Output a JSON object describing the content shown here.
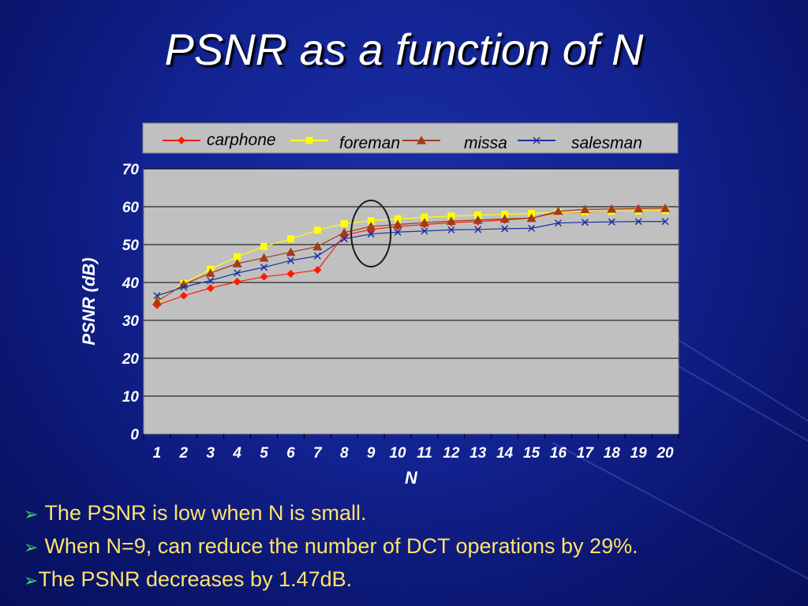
{
  "slide": {
    "title": "PSNR as a function of N",
    "bullets": [
      "The PSNR is low when N is small.",
      "When N=9, can reduce the number of DCT operations by 29%.",
      "The PSNR decreases by 1.47dB."
    ],
    "bullet_symbol": "➢"
  },
  "colors": {
    "carphone": "#ff1a00",
    "foreman": "#ffff00",
    "missa": "#a33a1a",
    "salesman": "#1f2f9f",
    "plot_background": "#c0c0c0",
    "axis_text": "#ffffff"
  },
  "chart_data": {
    "type": "line",
    "x": [
      1,
      2,
      3,
      4,
      5,
      6,
      7,
      8,
      9,
      10,
      11,
      12,
      13,
      14,
      15,
      16,
      17,
      18,
      19,
      20
    ],
    "xlabel": "N",
    "ylabel": "PSNR (dB)",
    "ylim": [
      0,
      70
    ],
    "yticks": [
      0,
      10,
      20,
      30,
      40,
      50,
      60,
      70
    ],
    "grid": true,
    "legend_position": "top",
    "annotation": "ellipse around N=9",
    "series": [
      {
        "name": "carphone",
        "marker": "diamond",
        "values": [
          34,
          36.5,
          38.5,
          40.2,
          41.5,
          42.3,
          43.3,
          52.5,
          54,
          54.8,
          55.3,
          55.8,
          56.1,
          56.5,
          57,
          58.5,
          58.6,
          58.8,
          58.9,
          59
        ]
      },
      {
        "name": "foreman",
        "marker": "square",
        "values": [
          35,
          39.8,
          43.5,
          46.8,
          49.5,
          51.5,
          53.8,
          55.5,
          56.3,
          56.8,
          57.2,
          57.5,
          57.8,
          58,
          58.2,
          58.5,
          58.7,
          58.8,
          58.9,
          59
        ]
      },
      {
        "name": "missa",
        "marker": "triangle",
        "values": [
          35,
          39.5,
          42.5,
          45,
          46.5,
          48,
          49.5,
          53.2,
          54.8,
          55.3,
          55.8,
          56.2,
          56.5,
          56.8,
          57,
          58.8,
          59.3,
          59.4,
          59.5,
          59.6
        ]
      },
      {
        "name": "salesman",
        "marker": "x",
        "values": [
          36.5,
          38.8,
          40.5,
          42.5,
          44,
          45.8,
          47,
          51.5,
          52.8,
          53.3,
          53.6,
          53.9,
          54,
          54.2,
          54.3,
          55.7,
          55.9,
          56,
          56.1,
          56.1
        ]
      }
    ]
  }
}
